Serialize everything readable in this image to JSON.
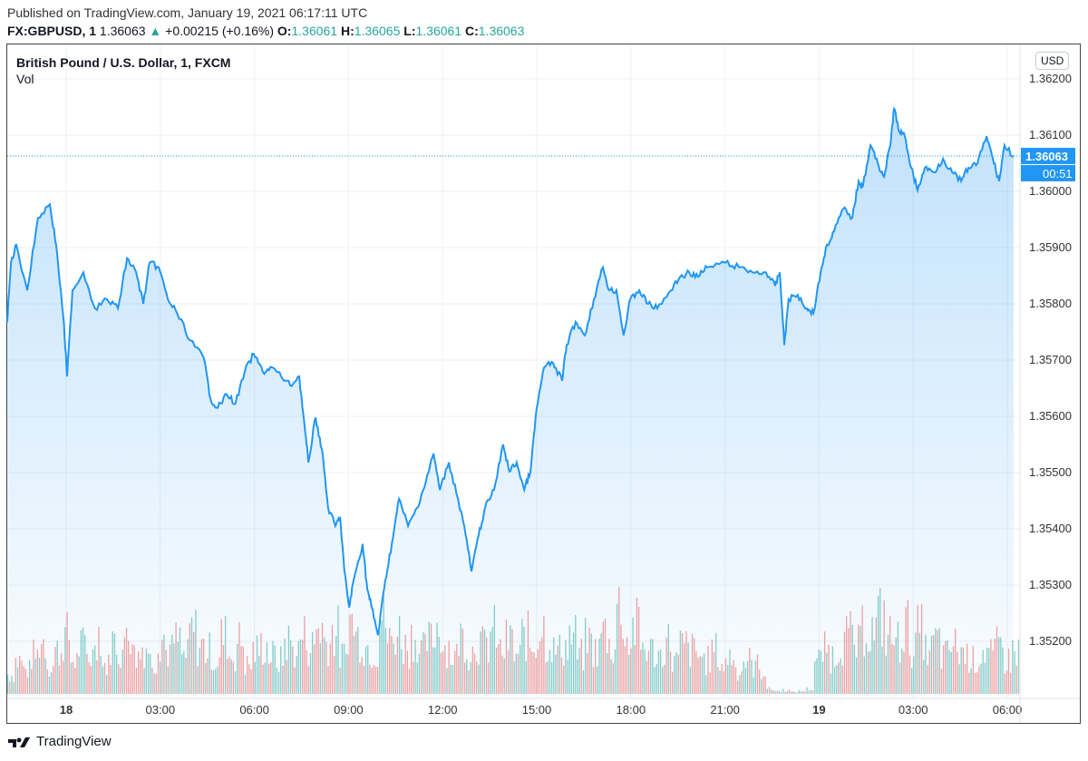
{
  "header": {
    "published": "Published on TradingView.com, January 19, 2021 06:17:11 UTC",
    "symbol": "FX:GBPUSD, 1",
    "last": "1.36063",
    "arrow": "▲",
    "change": "+0.00215 (+0.16%)",
    "o_label": "O:",
    "o": "1.36061",
    "h_label": "H:",
    "h": "1.36065",
    "l_label": "L:",
    "l": "1.36061",
    "c_label": "C:",
    "c": "1.36063"
  },
  "chart_title": "British Pound / U.S. Dollar, 1, FXCM",
  "vol_label": "Vol",
  "currency_button": "USD",
  "last_price_label": "1.36063",
  "countdown": "00:51",
  "brand": "TradingView",
  "colors": {
    "line": "#2196f3",
    "up": "#26a69a",
    "down": "#ef5350"
  },
  "chart_data": {
    "type": "area",
    "x_unit": "hours from Jan 18 00:00 UTC",
    "yticks": [
      "1.36200",
      "1.36100",
      "1.36000",
      "1.35900",
      "1.35800",
      "1.35700",
      "1.35600",
      "1.35500",
      "1.35400",
      "1.35300",
      "1.35200"
    ],
    "ylim": [
      1.351,
      1.3627
    ],
    "xticks": [
      {
        "h": 0,
        "label": "18"
      },
      {
        "h": 3,
        "label": "03:00"
      },
      {
        "h": 6,
        "label": "06:00"
      },
      {
        "h": 9,
        "label": "09:00"
      },
      {
        "h": 12,
        "label": "12:00"
      },
      {
        "h": 15,
        "label": "15:00"
      },
      {
        "h": 18,
        "label": "18:00"
      },
      {
        "h": 21,
        "label": "21:00"
      },
      {
        "h": 24,
        "label": "19"
      },
      {
        "h": 27,
        "label": "03:00"
      },
      {
        "h": 30,
        "label": "06:00"
      }
    ],
    "price": [
      [
        -1.88,
        1.35768
      ],
      [
        -1.76,
        1.35873
      ],
      [
        -1.59,
        1.35905
      ],
      [
        -1.24,
        1.35824
      ],
      [
        -0.9,
        1.35953
      ],
      [
        -0.52,
        1.35977
      ],
      [
        -0.32,
        1.35905
      ],
      [
        -0.09,
        1.35776
      ],
      [
        0.03,
        1.35671
      ],
      [
        0.2,
        1.35824
      ],
      [
        0.55,
        1.35856
      ],
      [
        0.92,
        1.35792
      ],
      [
        1.3,
        1.35808
      ],
      [
        1.65,
        1.35792
      ],
      [
        1.94,
        1.35881
      ],
      [
        2.23,
        1.35856
      ],
      [
        2.46,
        1.358
      ],
      [
        2.66,
        1.35873
      ],
      [
        2.95,
        1.35865
      ],
      [
        3.24,
        1.35808
      ],
      [
        3.53,
        1.35784
      ],
      [
        3.96,
        1.35735
      ],
      [
        4.39,
        1.35703
      ],
      [
        4.6,
        1.35631
      ],
      [
        4.83,
        1.35615
      ],
      [
        5.12,
        1.35639
      ],
      [
        5.4,
        1.35623
      ],
      [
        5.69,
        1.35679
      ],
      [
        5.98,
        1.35711
      ],
      [
        6.27,
        1.35679
      ],
      [
        6.56,
        1.35687
      ],
      [
        6.85,
        1.35671
      ],
      [
        7.14,
        1.35655
      ],
      [
        7.43,
        1.35671
      ],
      [
        7.63,
        1.35566
      ],
      [
        7.72,
        1.35518
      ],
      [
        7.95,
        1.35598
      ],
      [
        8.15,
        1.35542
      ],
      [
        8.35,
        1.35437
      ],
      [
        8.58,
        1.35405
      ],
      [
        8.73,
        1.35421
      ],
      [
        8.87,
        1.35324
      ],
      [
        9.02,
        1.3526
      ],
      [
        9.16,
        1.35308
      ],
      [
        9.45,
        1.35373
      ],
      [
        9.6,
        1.35292
      ],
      [
        9.74,
        1.3526
      ],
      [
        9.94,
        1.35211
      ],
      [
        10.17,
        1.35308
      ],
      [
        10.38,
        1.35373
      ],
      [
        10.61,
        1.35453
      ],
      [
        10.9,
        1.35405
      ],
      [
        11.18,
        1.35437
      ],
      [
        11.47,
        1.35485
      ],
      [
        11.71,
        1.35534
      ],
      [
        11.91,
        1.35469
      ],
      [
        12.2,
        1.35518
      ],
      [
        12.49,
        1.35453
      ],
      [
        12.69,
        1.35405
      ],
      [
        12.92,
        1.35324
      ],
      [
        13.15,
        1.35389
      ],
      [
        13.35,
        1.35437
      ],
      [
        13.64,
        1.35469
      ],
      [
        13.93,
        1.3555
      ],
      [
        14.13,
        1.35502
      ],
      [
        14.36,
        1.35518
      ],
      [
        14.6,
        1.35469
      ],
      [
        14.8,
        1.35502
      ],
      [
        15.0,
        1.35615
      ],
      [
        15.23,
        1.35687
      ],
      [
        15.52,
        1.35695
      ],
      [
        15.81,
        1.35663
      ],
      [
        15.95,
        1.35727
      ],
      [
        16.24,
        1.35768
      ],
      [
        16.53,
        1.35744
      ],
      [
        16.82,
        1.35808
      ],
      [
        17.11,
        1.35865
      ],
      [
        17.31,
        1.35824
      ],
      [
        17.54,
        1.35824
      ],
      [
        17.77,
        1.35744
      ],
      [
        17.98,
        1.35808
      ],
      [
        18.27,
        1.35824
      ],
      [
        18.55,
        1.358
      ],
      [
        18.84,
        1.35792
      ],
      [
        19.28,
        1.35824
      ],
      [
        19.57,
        1.35848
      ],
      [
        19.86,
        1.35856
      ],
      [
        20.14,
        1.35848
      ],
      [
        20.43,
        1.35865
      ],
      [
        21.01,
        1.35873
      ],
      [
        21.45,
        1.35865
      ],
      [
        21.88,
        1.35856
      ],
      [
        22.31,
        1.35856
      ],
      [
        22.6,
        1.35832
      ],
      [
        22.75,
        1.35856
      ],
      [
        22.89,
        1.35727
      ],
      [
        23.03,
        1.35808
      ],
      [
        23.32,
        1.35816
      ],
      [
        23.61,
        1.35792
      ],
      [
        23.82,
        1.35784
      ],
      [
        24.05,
        1.35856
      ],
      [
        24.25,
        1.35905
      ],
      [
        24.48,
        1.35929
      ],
      [
        24.77,
        1.35969
      ],
      [
        25.06,
        1.35953
      ],
      [
        25.26,
        1.36018
      ],
      [
        25.4,
        1.3601
      ],
      [
        25.64,
        1.36082
      ],
      [
        25.87,
        1.3605
      ],
      [
        26.07,
        1.36026
      ],
      [
        26.27,
        1.36082
      ],
      [
        26.39,
        1.36147
      ],
      [
        26.56,
        1.36106
      ],
      [
        26.73,
        1.36098
      ],
      [
        26.94,
        1.36042
      ],
      [
        27.14,
        1.36002
      ],
      [
        27.37,
        1.36042
      ],
      [
        27.66,
        1.36034
      ],
      [
        27.95,
        1.36058
      ],
      [
        28.24,
        1.36034
      ],
      [
        28.53,
        1.36018
      ],
      [
        28.76,
        1.36042
      ],
      [
        29.05,
        1.3605
      ],
      [
        29.34,
        1.36098
      ],
      [
        29.54,
        1.36058
      ],
      [
        29.74,
        1.36018
      ],
      [
        29.91,
        1.36082
      ],
      [
        30.2,
        1.36063
      ]
    ],
    "volume": [
      20,
      35,
      25,
      40,
      55,
      30,
      45,
      60,
      35,
      50,
      40,
      65,
      30,
      55,
      45,
      70,
      40,
      50,
      35,
      60,
      45,
      55,
      40,
      65,
      50,
      45,
      35,
      60,
      40,
      55,
      30,
      45,
      50,
      40,
      35,
      55,
      45,
      60,
      50,
      70,
      55,
      65,
      40,
      75,
      60,
      50,
      45,
      80,
      55,
      65,
      50,
      60,
      45,
      55,
      70,
      50,
      40,
      60,
      45,
      55,
      50,
      65,
      45,
      55,
      40,
      60,
      50,
      70,
      55,
      45,
      50,
      60,
      40,
      55,
      45,
      65,
      50,
      90,
      55,
      70,
      50,
      45,
      40,
      55,
      35,
      50,
      45,
      40,
      35,
      45,
      30,
      40,
      25,
      35,
      30,
      25,
      5,
      3,
      4,
      2,
      3,
      5,
      35,
      45,
      40,
      55,
      60,
      50,
      70,
      65,
      80,
      60,
      55,
      70,
      50,
      65,
      45,
      55,
      40,
      50,
      45,
      40,
      35,
      45,
      40,
      50,
      35,
      45
    ]
  }
}
